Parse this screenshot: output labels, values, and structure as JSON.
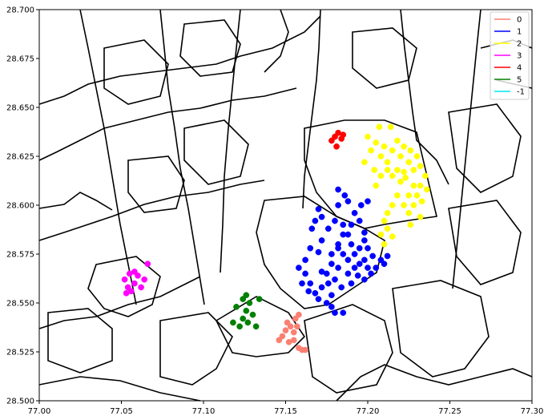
{
  "chart_data": {
    "type": "scatter",
    "title": "",
    "xlabel": "",
    "ylabel": "",
    "xlim": [
      77.0,
      77.3
    ],
    "ylim": [
      28.5,
      28.7
    ],
    "grid": false,
    "legend_position": "top-right",
    "x_ticks": [
      "77.00",
      "77.05",
      "77.10",
      "77.15",
      "77.20",
      "77.25",
      "77.30"
    ],
    "y_ticks": [
      "28.500",
      "28.525",
      "28.550",
      "28.575",
      "28.600",
      "28.625",
      "28.650",
      "28.675",
      "28.700"
    ],
    "series": [
      {
        "name": "0",
        "color": "#fa8072",
        "points": [
          [
            77.148,
            28.533
          ],
          [
            77.15,
            28.536
          ],
          [
            77.151,
            28.54
          ],
          [
            77.153,
            28.538
          ],
          [
            77.155,
            28.535
          ],
          [
            77.156,
            28.542
          ],
          [
            77.157,
            28.538
          ],
          [
            77.155,
            28.531
          ],
          [
            77.158,
            28.527
          ],
          [
            77.16,
            28.526
          ],
          [
            77.162,
            28.526
          ],
          [
            77.152,
            28.53
          ],
          [
            77.146,
            28.531
          ],
          [
            77.158,
            28.544
          ]
        ]
      },
      {
        "name": "1",
        "color": "#0000ff",
        "points": [
          [
            77.17,
            28.598
          ],
          [
            77.176,
            28.588
          ],
          [
            77.168,
            28.592
          ],
          [
            77.172,
            28.582
          ],
          [
            77.18,
            28.592
          ],
          [
            77.185,
            28.59
          ],
          [
            77.188,
            28.585
          ],
          [
            77.19,
            28.58
          ],
          [
            77.182,
            28.578
          ],
          [
            77.178,
            28.575
          ],
          [
            77.165,
            28.578
          ],
          [
            77.162,
            28.572
          ],
          [
            77.158,
            28.568
          ],
          [
            77.162,
            28.565
          ],
          [
            77.165,
            28.56
          ],
          [
            77.168,
            28.555
          ],
          [
            77.17,
            28.552
          ],
          [
            77.175,
            28.55
          ],
          [
            77.178,
            28.548
          ],
          [
            77.18,
            28.545
          ],
          [
            77.185,
            28.545
          ],
          [
            77.175,
            28.565
          ],
          [
            77.178,
            28.57
          ],
          [
            77.182,
            28.568
          ],
          [
            77.188,
            28.565
          ],
          [
            77.192,
            28.568
          ],
          [
            77.195,
            28.57
          ],
          [
            77.198,
            28.572
          ],
          [
            77.2,
            28.568
          ],
          [
            77.202,
            28.565
          ],
          [
            77.205,
            28.568
          ],
          [
            77.208,
            28.572
          ],
          [
            77.21,
            28.57
          ],
          [
            77.212,
            28.574
          ],
          [
            77.2,
            28.578
          ],
          [
            77.198,
            28.582
          ],
          [
            77.195,
            28.578
          ],
          [
            77.192,
            28.575
          ],
          [
            77.188,
            28.572
          ],
          [
            77.185,
            28.575
          ],
          [
            77.182,
            28.58
          ],
          [
            77.185,
            28.585
          ],
          [
            77.19,
            28.59
          ],
          [
            77.195,
            28.592
          ],
          [
            77.192,
            28.596
          ],
          [
            77.196,
            28.6
          ],
          [
            77.2,
            28.602
          ],
          [
            77.188,
            28.602
          ],
          [
            77.182,
            28.6
          ],
          [
            77.186,
            28.605
          ],
          [
            77.172,
            28.594
          ],
          [
            77.166,
            28.588
          ],
          [
            77.17,
            28.576
          ],
          [
            77.16,
            28.56
          ],
          [
            77.164,
            28.556
          ],
          [
            77.172,
            28.558
          ],
          [
            77.176,
            28.56
          ],
          [
            77.18,
            28.562
          ],
          [
            77.184,
            28.558
          ],
          [
            77.19,
            28.56
          ],
          [
            77.194,
            28.564
          ],
          [
            77.198,
            28.562
          ],
          [
            77.182,
            28.608
          ],
          [
            77.198,
            28.586
          ],
          [
            77.203,
            28.574
          ],
          [
            77.178,
            28.554
          ],
          [
            77.172,
            28.566
          ]
        ]
      },
      {
        "name": "2",
        "color": "#ffff00",
        "points": [
          [
            77.2,
            28.635
          ],
          [
            77.202,
            28.628
          ],
          [
            77.205,
            28.632
          ],
          [
            77.208,
            28.625
          ],
          [
            77.21,
            28.63
          ],
          [
            77.212,
            28.622
          ],
          [
            77.215,
            28.628
          ],
          [
            77.218,
            28.633
          ],
          [
            77.22,
            28.625
          ],
          [
            77.222,
            28.63
          ],
          [
            77.225,
            28.622
          ],
          [
            77.228,
            28.618
          ],
          [
            77.23,
            28.625
          ],
          [
            77.232,
            28.62
          ],
          [
            77.235,
            28.615
          ],
          [
            77.232,
            28.61
          ],
          [
            77.23,
            28.605
          ],
          [
            77.228,
            28.6
          ],
          [
            77.225,
            28.596
          ],
          [
            77.222,
            28.6
          ],
          [
            77.225,
            28.605
          ],
          [
            77.228,
            28.61
          ],
          [
            77.22,
            28.612
          ],
          [
            77.218,
            28.605
          ],
          [
            77.215,
            28.6
          ],
          [
            77.212,
            28.596
          ],
          [
            77.21,
            28.592
          ],
          [
            77.212,
            28.588
          ],
          [
            77.215,
            28.584
          ],
          [
            77.21,
            28.58
          ],
          [
            77.208,
            28.585
          ],
          [
            77.205,
            28.61
          ],
          [
            77.208,
            28.615
          ],
          [
            77.212,
            28.618
          ],
          [
            77.215,
            28.615
          ],
          [
            77.218,
            28.618
          ],
          [
            77.223,
            28.614
          ],
          [
            77.226,
            28.628
          ],
          [
            77.233,
            28.602
          ],
          [
            77.236,
            28.608
          ],
          [
            77.198,
            28.622
          ],
          [
            77.204,
            28.618
          ],
          [
            77.214,
            28.64
          ],
          [
            77.207,
            28.64
          ],
          [
            77.222,
            28.617
          ],
          [
            77.226,
            28.59
          ],
          [
            77.232,
            28.594
          ]
        ]
      },
      {
        "name": "3",
        "color": "#ff00ff",
        "points": [
          [
            77.052,
            28.562
          ],
          [
            77.055,
            28.565
          ],
          [
            77.058,
            28.56
          ],
          [
            77.06,
            28.564
          ],
          [
            77.056,
            28.556
          ],
          [
            77.062,
            28.558
          ],
          [
            77.064,
            28.562
          ],
          [
            77.058,
            28.566
          ],
          [
            77.054,
            28.558
          ],
          [
            77.066,
            28.57
          ],
          [
            77.053,
            28.555
          ]
        ]
      },
      {
        "name": "4",
        "color": "#ff0000",
        "points": [
          [
            77.18,
            28.635
          ],
          [
            77.182,
            28.637
          ],
          [
            77.184,
            28.634
          ],
          [
            77.178,
            28.633
          ],
          [
            77.181,
            28.63
          ],
          [
            77.185,
            28.636
          ]
        ]
      },
      {
        "name": "5",
        "color": "#008000",
        "points": [
          [
            77.12,
            28.548
          ],
          [
            77.124,
            28.552
          ],
          [
            77.126,
            28.546
          ],
          [
            77.128,
            28.55
          ],
          [
            77.13,
            28.544
          ],
          [
            77.124,
            28.542
          ],
          [
            77.122,
            28.538
          ],
          [
            77.118,
            28.54
          ],
          [
            77.134,
            28.552
          ],
          [
            77.126,
            28.554
          ],
          [
            77.132,
            28.538
          ],
          [
            77.127,
            28.54
          ]
        ]
      },
      {
        "name": "-1",
        "color": "#00e5ee",
        "points": []
      }
    ]
  },
  "map_styles": {
    "boundary_color": "#000000",
    "legend_stroke": "#cccccc"
  }
}
